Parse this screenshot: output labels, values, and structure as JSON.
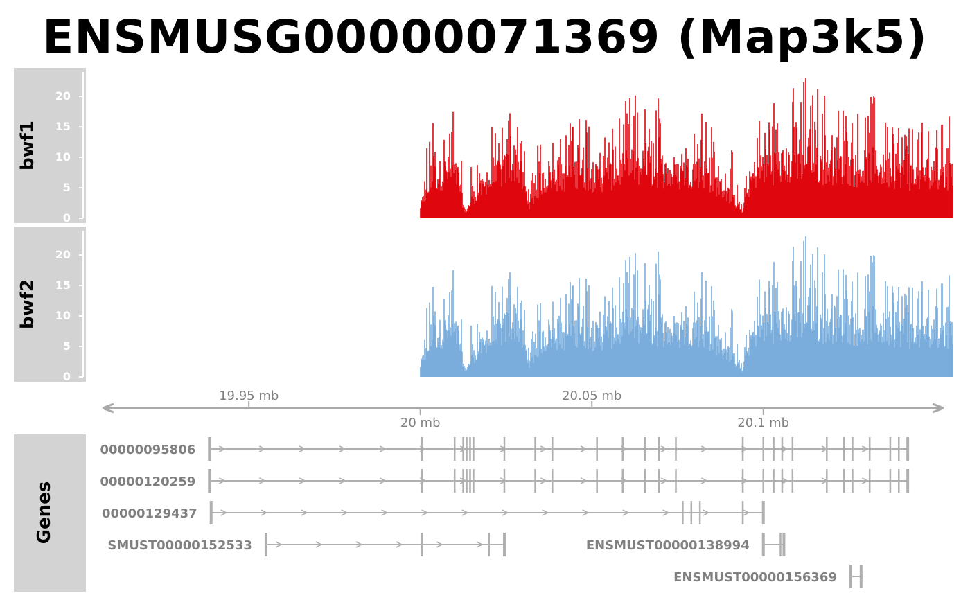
{
  "title": "ENSMUSG00000071369 (Map3k5)",
  "colors": {
    "bwf1": "#e0060e",
    "bwf2": "#7aaddc",
    "panel_bg": "#d3d3d3",
    "axis": "#a9a9a9",
    "gene": "#b0b0b0",
    "text_grey": "#808080"
  },
  "chart_data": {
    "type": "area",
    "title": "ENSMUSG00000071369 (Map3k5)",
    "x_unit": "mb",
    "x_range": [
      19.9035,
      20.1552
    ],
    "y_range": [
      0,
      24
    ],
    "y_ticks": [
      0,
      5,
      10,
      15,
      20
    ],
    "y_tick_labels": [
      "0",
      "5",
      "10",
      "15",
      "20"
    ],
    "data_start": 20.0,
    "data_end": 20.1552,
    "series": [
      {
        "name": "bwf1",
        "color": "#e0060e",
        "x": [
          20.0,
          20.004,
          20.008,
          20.011,
          20.013,
          20.016,
          20.02,
          20.024,
          20.026,
          20.028,
          20.03,
          20.032,
          20.035,
          20.038,
          20.042,
          20.046,
          20.05,
          20.054,
          20.058,
          20.062,
          20.066,
          20.07,
          20.074,
          20.078,
          20.082,
          20.086,
          20.09,
          20.094,
          20.096,
          20.098,
          20.1,
          20.104,
          20.108,
          20.112,
          20.116,
          20.12,
          20.124,
          20.128,
          20.132,
          20.136,
          20.14,
          20.144,
          20.148,
          20.152,
          20.155
        ],
        "max": [
          17,
          17,
          19,
          19,
          4,
          12,
          14,
          19,
          21,
          23,
          13,
          5,
          16,
          16,
          16,
          18,
          17,
          16,
          17,
          22,
          18,
          21,
          17,
          22,
          19,
          14,
          14,
          1,
          15,
          18,
          21,
          21,
          21,
          24,
          22,
          20,
          21,
          17,
          21,
          17,
          17,
          15,
          17,
          17,
          17
        ],
        "base": [
          2,
          7,
          8,
          7,
          1,
          4,
          6,
          8,
          9,
          10,
          6,
          2,
          6,
          7,
          7,
          8,
          7,
          7,
          8,
          9,
          8,
          8,
          7,
          8,
          8,
          6,
          4,
          1,
          6,
          8,
          9,
          9,
          9,
          10,
          9,
          9,
          9,
          8,
          9,
          8,
          8,
          7,
          8,
          7,
          8
        ]
      },
      {
        "name": "bwf2",
        "color": "#7aaddc",
        "x": [
          20.0,
          20.004,
          20.008,
          20.011,
          20.013,
          20.016,
          20.02,
          20.024,
          20.026,
          20.028,
          20.03,
          20.032,
          20.035,
          20.038,
          20.042,
          20.046,
          20.05,
          20.054,
          20.058,
          20.062,
          20.066,
          20.07,
          20.074,
          20.078,
          20.082,
          20.086,
          20.09,
          20.094,
          20.096,
          20.098,
          20.1,
          20.104,
          20.108,
          20.112,
          20.116,
          20.12,
          20.124,
          20.128,
          20.132,
          20.136,
          20.14,
          20.144,
          20.148,
          20.152,
          20.155
        ],
        "max": [
          17,
          16,
          19,
          19,
          4,
          12,
          14,
          19,
          21,
          22,
          13,
          5,
          16,
          16,
          16,
          18,
          17,
          16,
          17,
          22,
          19,
          22,
          17,
          23,
          19,
          14,
          14,
          1,
          15,
          18,
          21,
          21,
          21,
          24,
          22,
          20,
          21,
          17,
          21,
          17,
          17,
          15,
          17,
          17,
          17
        ],
        "base": [
          2,
          7,
          8,
          7,
          1,
          4,
          6,
          8,
          9,
          10,
          6,
          2,
          6,
          7,
          7,
          8,
          7,
          7,
          8,
          9,
          8,
          8,
          7,
          8,
          8,
          6,
          4,
          1,
          6,
          8,
          9,
          9,
          9,
          10,
          9,
          9,
          9,
          8,
          9,
          8,
          8,
          7,
          8,
          7,
          8
        ]
      }
    ],
    "genome_axis": {
      "labels": [
        "19.95 mb",
        "20 mb",
        "20.05 mb",
        "20.1 mb"
      ],
      "positions": [
        19.95,
        20.0,
        20.05,
        20.1
      ],
      "above": [
        true,
        false,
        true,
        false
      ]
    },
    "genes_track": {
      "label": "Genes",
      "transcripts": [
        {
          "label": "00000095806",
          "start": 19.9385,
          "end": 20.1421,
          "exons": [
            19.9385,
            20.0005,
            20.01,
            20.0125,
            20.0135,
            20.0145,
            20.0155,
            20.0245,
            20.0335,
            20.0385,
            20.0515,
            20.059,
            20.0655,
            20.0695,
            20.0745,
            20.094,
            20.1,
            20.103,
            20.1055,
            20.1085,
            20.1185,
            20.1235,
            20.126,
            20.131,
            20.137,
            20.1395,
            20.1421
          ],
          "arrow_right": true
        },
        {
          "label": "00000120259",
          "start": 19.9385,
          "end": 20.1421,
          "exons": [
            19.9385,
            20.0005,
            20.01,
            20.0125,
            20.0135,
            20.0145,
            20.0155,
            20.0245,
            20.0335,
            20.0385,
            20.0515,
            20.059,
            20.0655,
            20.0695,
            20.0745,
            20.094,
            20.1,
            20.103,
            20.1055,
            20.1085,
            20.1185,
            20.1235,
            20.126,
            20.131,
            20.137,
            20.1395,
            20.1421
          ],
          "arrow_right": true
        },
        {
          "label": "00000129437",
          "start": 19.939,
          "end": 20.1,
          "exons": [
            19.939,
            20.0765,
            20.079,
            20.0815,
            20.094,
            20.1
          ],
          "arrow_right": true
        },
        {
          "label": "SMUST00000152533",
          "start": 19.955,
          "end": 20.0245,
          "exons": [
            19.955,
            20.0005,
            20.02,
            20.0245
          ],
          "arrow_right": true
        },
        {
          "label": "ENSMUST00000138994",
          "start": 20.1,
          "end": 20.106,
          "exons": [
            20.1,
            20.105,
            20.106
          ],
          "arrow_right": false
        },
        {
          "label": "ENSMUST00000156369",
          "start": 20.1255,
          "end": 20.1285,
          "exons": [
            20.1255,
            20.1285
          ],
          "arrow_right": false
        }
      ]
    }
  },
  "tracks": {
    "bwf1_label": "bwf1",
    "bwf2_label": "bwf2",
    "genes_label": "Genes"
  }
}
